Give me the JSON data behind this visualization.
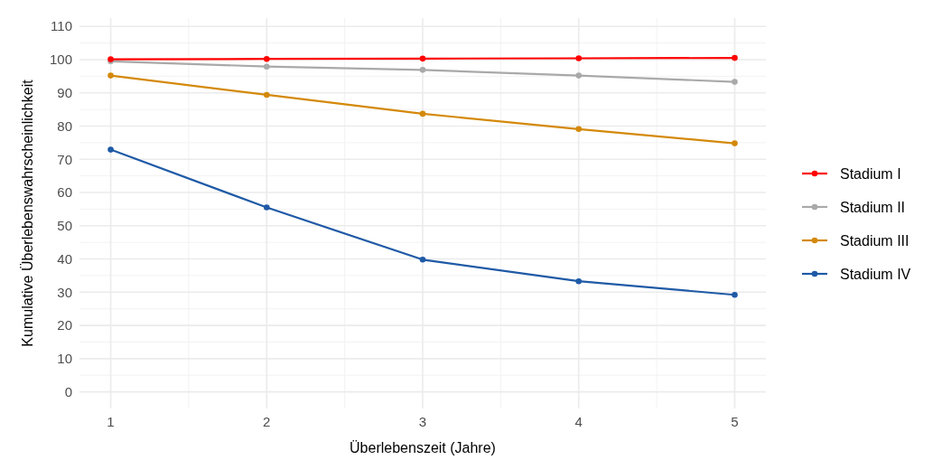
{
  "chart_data": {
    "type": "line",
    "xlabel": "Überlebenszeit (Jahre)",
    "ylabel": "Kumulative Überlebenswahrscheinlichkeit",
    "x": [
      1,
      2,
      3,
      4,
      5
    ],
    "series": [
      {
        "name": "Stadium I",
        "color": "#ff0000",
        "values": [
          100.1,
          100.2,
          100.3,
          100.4,
          100.5
        ]
      },
      {
        "name": "Stadium II",
        "color": "#a9a9a9",
        "values": [
          99.5,
          97.9,
          96.9,
          95.2,
          93.3
        ]
      },
      {
        "name": "Stadium III",
        "color": "#d4890a",
        "values": [
          95.2,
          89.4,
          83.7,
          79.1,
          74.8
        ]
      },
      {
        "name": "Stadium IV",
        "color": "#1f5aa6",
        "values": [
          72.9,
          55.5,
          39.8,
          33.3,
          29.2
        ]
      }
    ],
    "xlim": [
      0.8,
      5.2
    ],
    "xticks": [
      1,
      2,
      3,
      4,
      5
    ],
    "ylim": [
      -5,
      112.5
    ],
    "yticks": [
      0,
      10,
      20,
      30,
      40,
      50,
      60,
      70,
      80,
      90,
      100,
      110
    ],
    "grid": true,
    "legend": "right",
    "marker": "circle",
    "line_style": "solid"
  }
}
